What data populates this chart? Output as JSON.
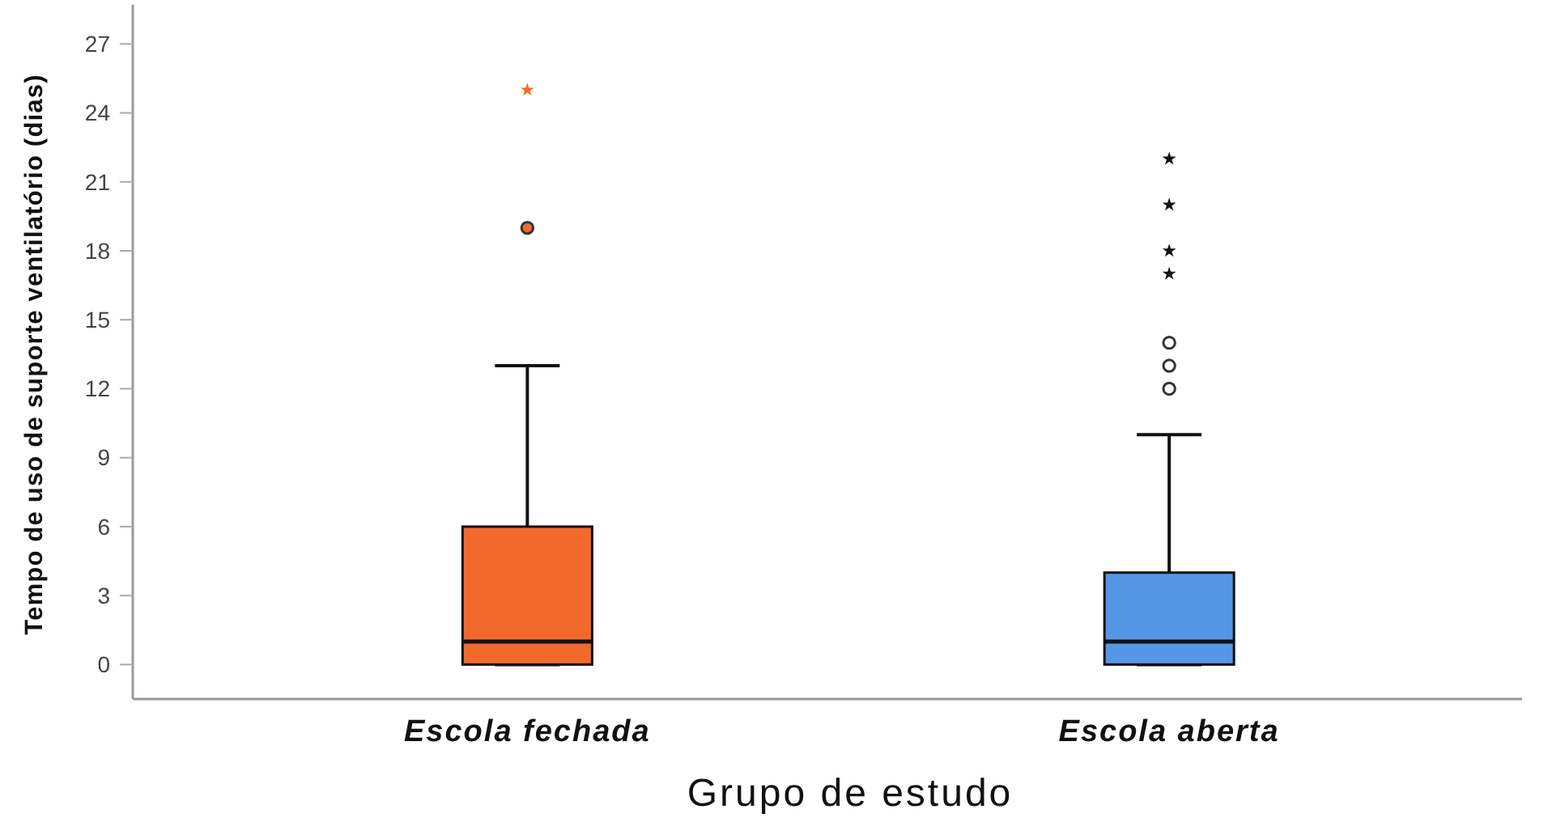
{
  "chart_data": {
    "type": "box",
    "xlabel": "Grupo de estudo",
    "ylabel": "Tempo de uso de suporte ventilatório (dias)",
    "categories": [
      "Escola fechada",
      "Escola aberta"
    ],
    "colors": [
      "#f26a2b",
      "#5596e6"
    ],
    "boxes": [
      {
        "low": 0,
        "q1": 0,
        "median": 1,
        "q3": 6,
        "high": 13,
        "outliers": [
          19,
          25
        ]
      },
      {
        "low": 0,
        "q1": 0,
        "median": 1,
        "q3": 4,
        "high": 10,
        "outliers": [
          12,
          13,
          14,
          17,
          18,
          20,
          22
        ]
      }
    ],
    "ylim": [
      -1.5,
      28.7
    ],
    "yticks": [
      0,
      3,
      6,
      9,
      12,
      15,
      18,
      21,
      24,
      27
    ]
  }
}
